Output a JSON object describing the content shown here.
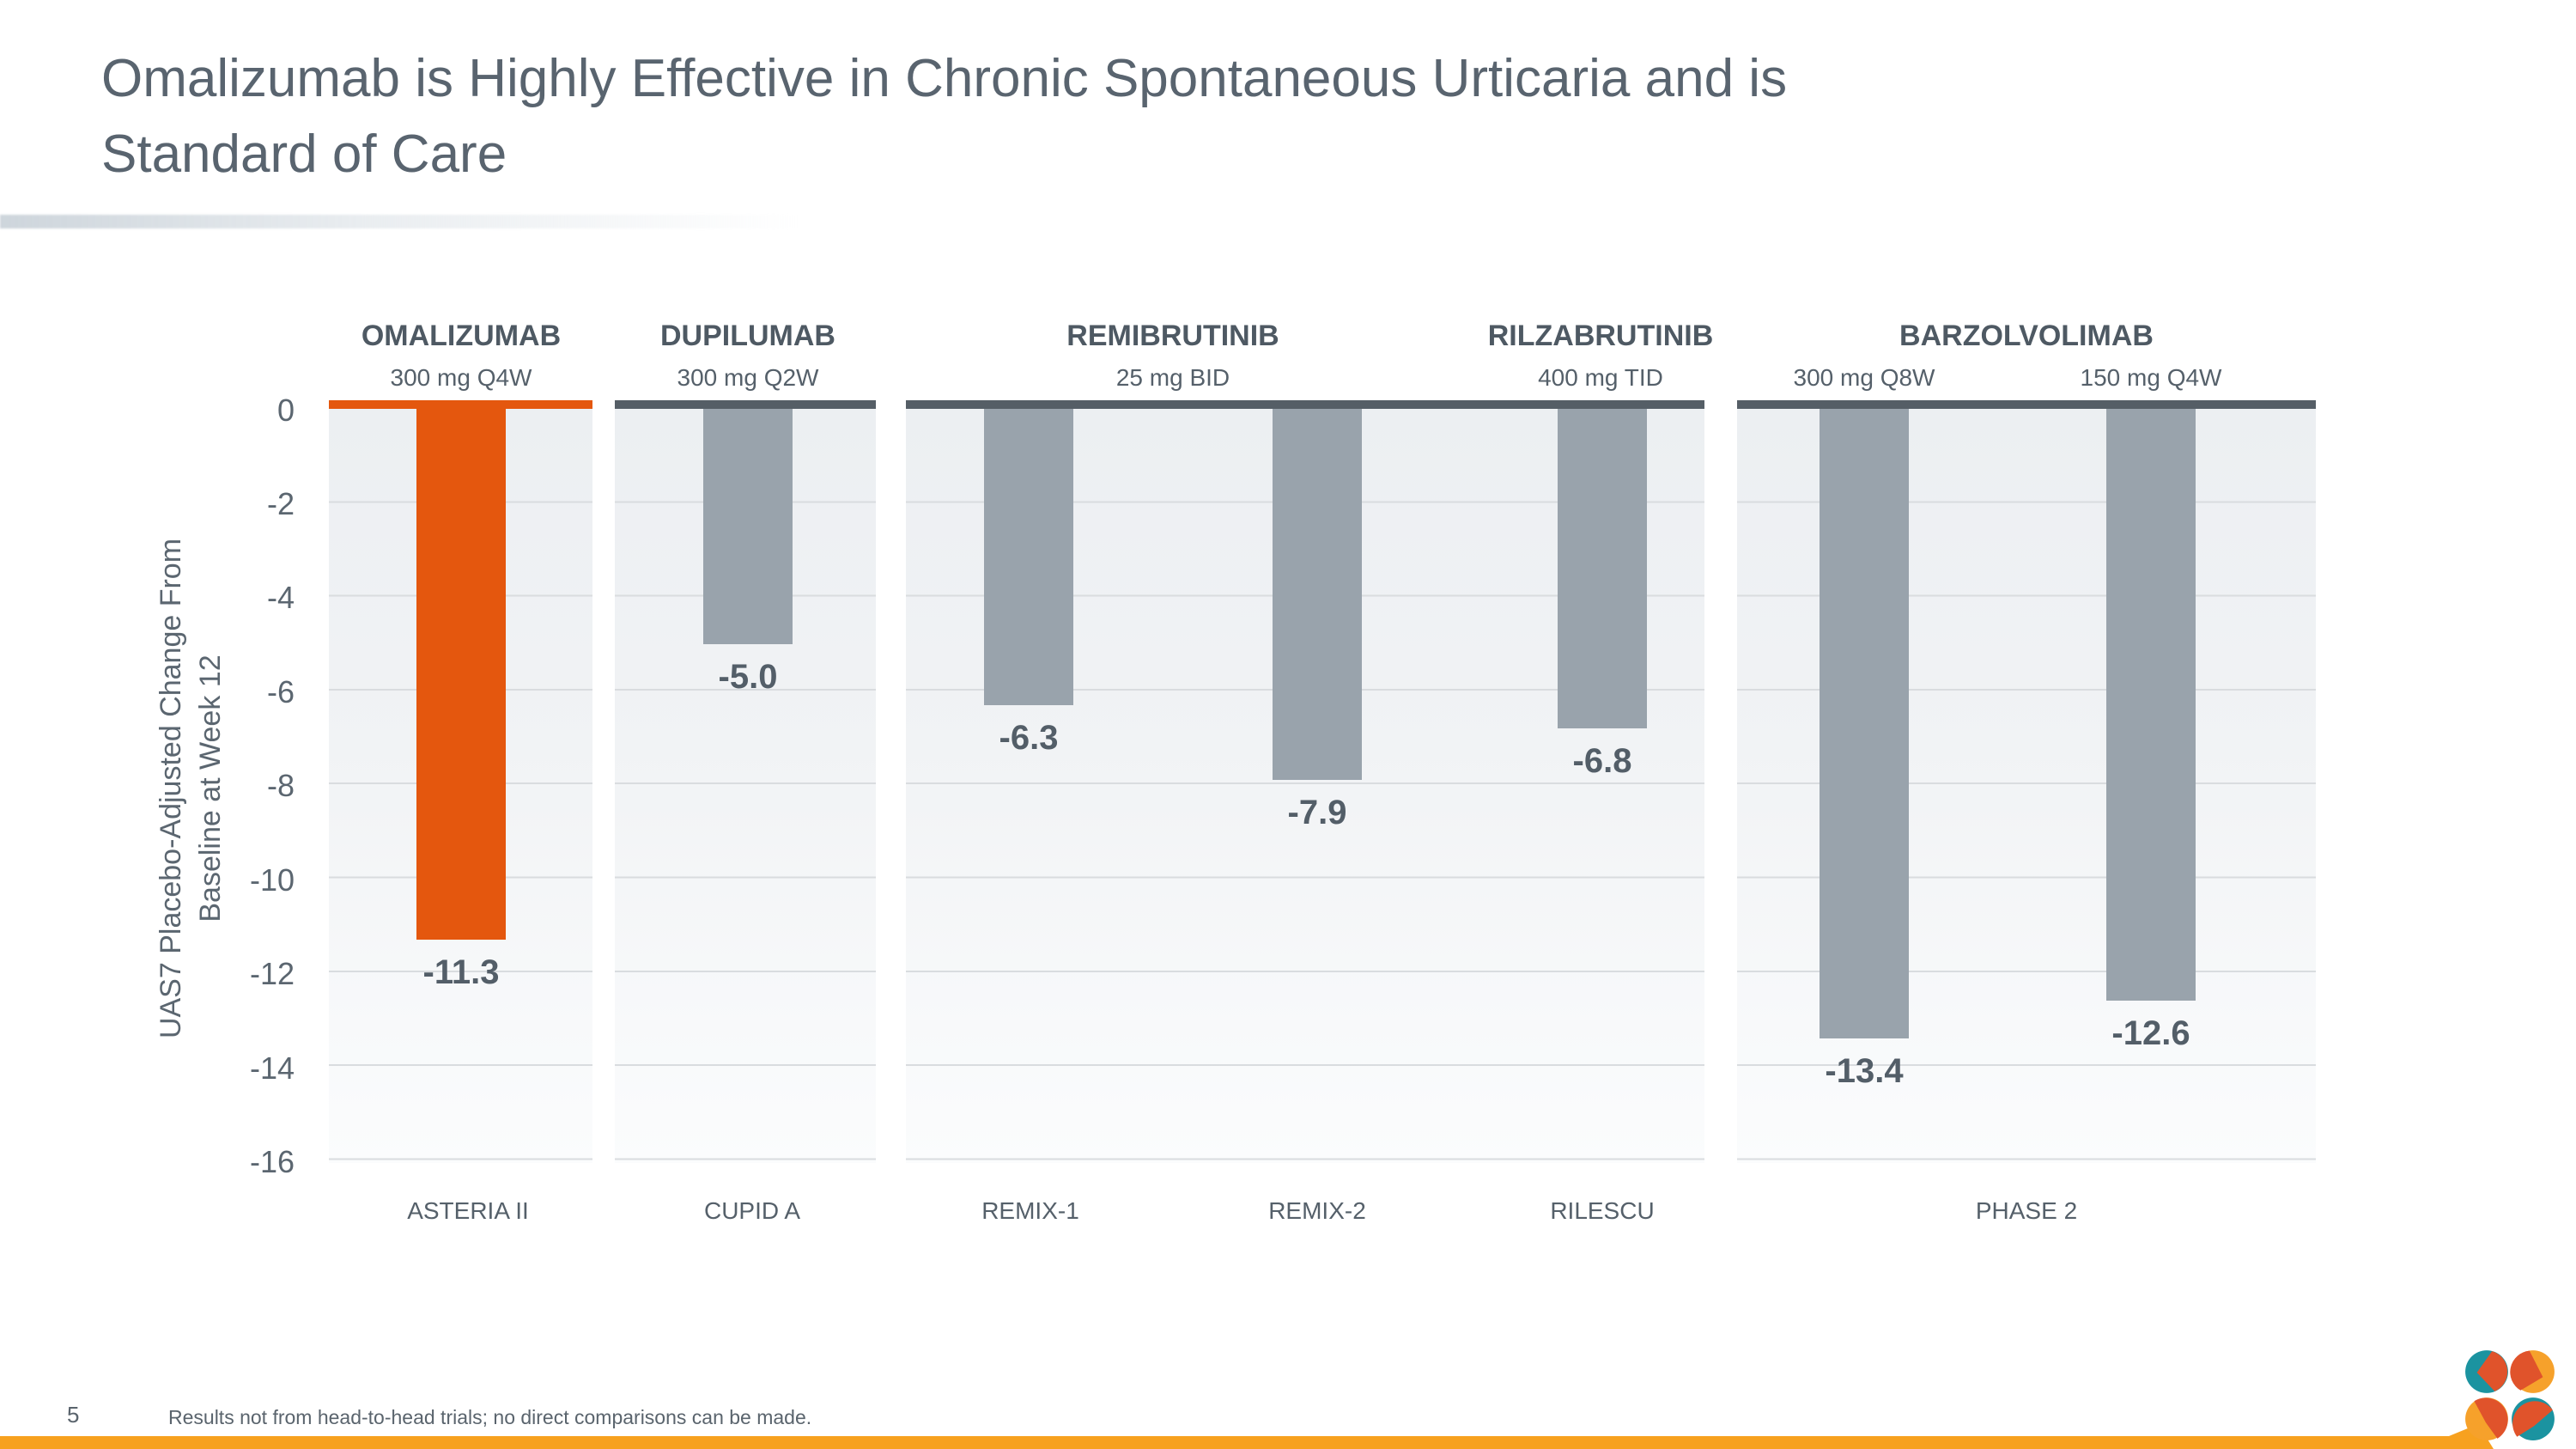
{
  "slide": {
    "title_lines": [
      "Omalizumab is Highly Effective in Chronic Spontaneous Urticaria and is",
      "Standard of Care"
    ],
    "page_number": "5",
    "footnote": "Results not from head-to-head trials; no direct comparisons can be made."
  },
  "colors": {
    "highlight_orange": "#E4570E",
    "bar_gray": "#99A3AC",
    "axis_dark": "#555E66",
    "text_slate": "#5A6570",
    "footer_band_amber": "#F7A11F",
    "logo_teal": "#1B93A0",
    "logo_amber": "#F6A12B",
    "logo_vermilion": "#E0532B"
  },
  "chart_data": {
    "type": "bar",
    "title": "",
    "ylabel_lines": [
      "UAS7 Placebo-Adjusted Change From",
      "Baseline at Week 12"
    ],
    "yticks": [
      "0",
      "-2",
      "-4",
      "-6",
      "-8",
      "-10",
      "-12",
      "-14",
      "-16"
    ],
    "ylim": [
      -16,
      0
    ],
    "grid": true,
    "groups": [
      {
        "drug": "OMALIZUMAB",
        "doses": [
          "300 mg Q4W"
        ]
      },
      {
        "drug": "DUPILUMAB",
        "doses": [
          "300 mg Q2W"
        ]
      },
      {
        "drug": "REMIBRUTINIB",
        "doses": [
          "25 mg BID"
        ]
      },
      {
        "drug": "RILZABRUTINIB",
        "doses": [
          "400 mg TID"
        ]
      },
      {
        "drug": "BARZOLVOLIMAB",
        "doses": [
          "300 mg Q8W",
          "150 mg Q4W"
        ]
      }
    ],
    "bars": [
      {
        "trial": "ASTERIA II",
        "drug": "OMALIZUMAB",
        "dose": "300 mg Q4W",
        "value": -11.3,
        "label": "-11.3",
        "highlighted": true
      },
      {
        "trial": "CUPID A",
        "drug": "DUPILUMAB",
        "dose": "300 mg Q2W",
        "value": -5.0,
        "label": "-5.0",
        "highlighted": false
      },
      {
        "trial": "REMIX-1",
        "drug": "REMIBRUTINIB",
        "dose": "25 mg BID",
        "value": -6.3,
        "label": "-6.3",
        "highlighted": false
      },
      {
        "trial": "REMIX-2",
        "drug": "REMIBRUTINIB",
        "dose": "25 mg BID",
        "value": -7.9,
        "label": "-7.9",
        "highlighted": false
      },
      {
        "trial": "RILESCU",
        "drug": "RILZABRUTINIB",
        "dose": "400 mg TID",
        "value": -6.8,
        "label": "-6.8",
        "highlighted": false
      },
      {
        "trial": "PHASE 2",
        "drug": "BARZOLVOLIMAB",
        "dose": "300 mg Q8W",
        "value": -13.4,
        "label": "-13.4",
        "highlighted": false
      },
      {
        "trial": "PHASE 2",
        "drug": "BARZOLVOLIMAB",
        "dose": "150 mg Q4W",
        "value": -12.6,
        "label": "-12.6",
        "highlighted": false
      }
    ],
    "x_axis_labels": [
      "ASTERIA II",
      "CUPID A",
      "REMIX-1",
      "REMIX-2",
      "RILESCU",
      "PHASE 2"
    ]
  }
}
